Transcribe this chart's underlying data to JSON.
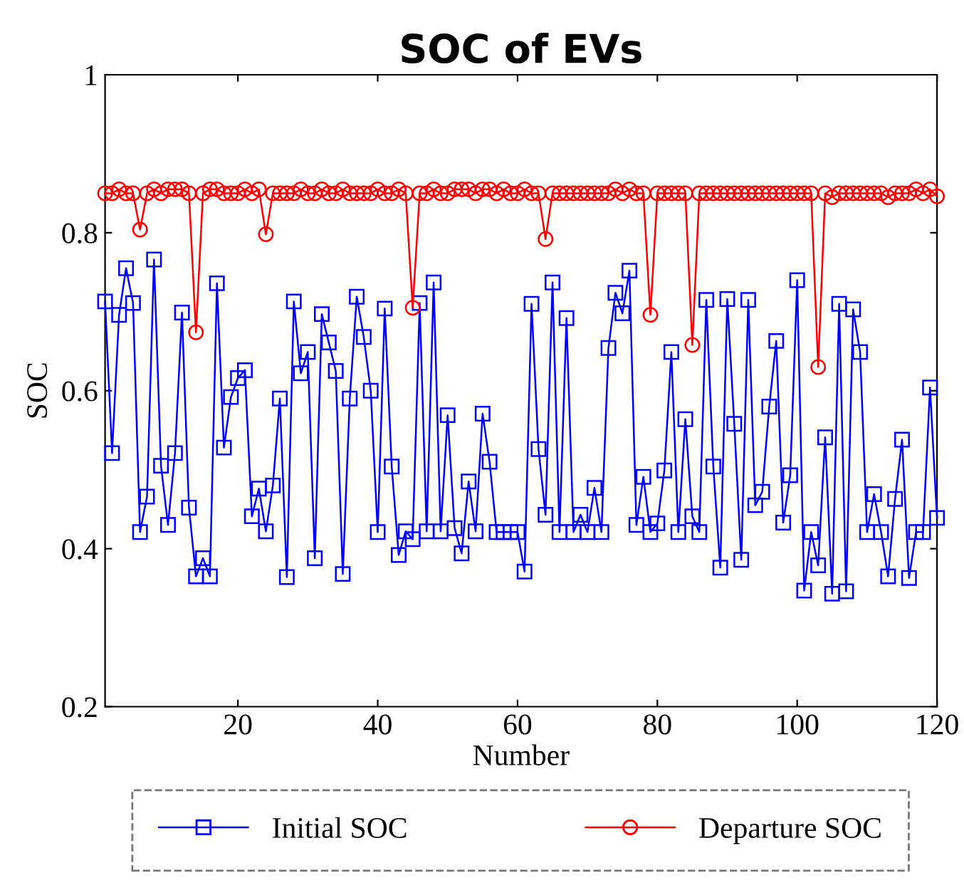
{
  "chart_data": {
    "type": "line",
    "title": "SOC of EVs",
    "xlabel": "Number",
    "ylabel": "SOC",
    "x": [
      1,
      2,
      3,
      4,
      5,
      6,
      7,
      8,
      9,
      10,
      11,
      12,
      13,
      14,
      15,
      16,
      17,
      18,
      19,
      20,
      21,
      22,
      23,
      24,
      25,
      26,
      27,
      28,
      29,
      30,
      31,
      32,
      33,
      34,
      35,
      36,
      37,
      38,
      39,
      40,
      41,
      42,
      43,
      44,
      45,
      46,
      47,
      48,
      49,
      50,
      51,
      52,
      53,
      54,
      55,
      56,
      57,
      58,
      59,
      60,
      61,
      62,
      63,
      64,
      65,
      66,
      67,
      68,
      69,
      70,
      71,
      72,
      73,
      74,
      75,
      76,
      77,
      78,
      79,
      80,
      81,
      82,
      83,
      84,
      85,
      86,
      87,
      88,
      89,
      90,
      91,
      92,
      93,
      94,
      95,
      96,
      97,
      98,
      99,
      100,
      101,
      102,
      103,
      104,
      105,
      106,
      107,
      108,
      109,
      110,
      111,
      112,
      113,
      114,
      115,
      116,
      117,
      118,
      119,
      120
    ],
    "series": [
      {
        "name": "Initial SOC",
        "color": "#0000ff",
        "marker": "square",
        "values": [
          0.713,
          0.521,
          0.696,
          0.755,
          0.711,
          0.421,
          0.466,
          0.766,
          0.505,
          0.43,
          0.521,
          0.699,
          0.452,
          0.365,
          0.388,
          0.365,
          0.736,
          0.528,
          0.592,
          0.616,
          0.626,
          0.441,
          0.476,
          0.422,
          0.48,
          0.59,
          0.364,
          0.713,
          0.622,
          0.649,
          0.388,
          0.697,
          0.661,
          0.625,
          0.368,
          0.59,
          0.719,
          0.668,
          0.6,
          0.421,
          0.704,
          0.504,
          0.392,
          0.422,
          0.412,
          0.711,
          0.422,
          0.737,
          0.422,
          0.569,
          0.426,
          0.394,
          0.485,
          0.422,
          0.571,
          0.51,
          0.421,
          0.421,
          0.421,
          0.421,
          0.371,
          0.71,
          0.526,
          0.443,
          0.737,
          0.421,
          0.692,
          0.421,
          0.443,
          0.421,
          0.477,
          0.421,
          0.654,
          0.724,
          0.698,
          0.752,
          0.43,
          0.491,
          0.421,
          0.432,
          0.499,
          0.649,
          0.421,
          0.564,
          0.441,
          0.421,
          0.715,
          0.504,
          0.376,
          0.716,
          0.558,
          0.386,
          0.715,
          0.455,
          0.472,
          0.58,
          0.663,
          0.433,
          0.493,
          0.74,
          0.347,
          0.421,
          0.379,
          0.541,
          0.343,
          0.71,
          0.346,
          0.703,
          0.649,
          0.421,
          0.469,
          0.421,
          0.365,
          0.463,
          0.538,
          0.363,
          0.421,
          0.421,
          0.604,
          0.439
        ]
      },
      {
        "name": "Departure SOC",
        "color": "#ff0000",
        "marker": "circle",
        "values": [
          0.85,
          0.85,
          0.855,
          0.85,
          0.85,
          0.804,
          0.85,
          0.855,
          0.85,
          0.855,
          0.855,
          0.855,
          0.85,
          0.674,
          0.85,
          0.855,
          0.855,
          0.85,
          0.85,
          0.85,
          0.855,
          0.85,
          0.855,
          0.798,
          0.85,
          0.85,
          0.85,
          0.85,
          0.855,
          0.85,
          0.85,
          0.855,
          0.85,
          0.85,
          0.855,
          0.85,
          0.85,
          0.85,
          0.85,
          0.855,
          0.85,
          0.85,
          0.855,
          0.85,
          0.705,
          0.85,
          0.85,
          0.855,
          0.85,
          0.85,
          0.855,
          0.855,
          0.855,
          0.85,
          0.855,
          0.855,
          0.85,
          0.855,
          0.85,
          0.85,
          0.855,
          0.85,
          0.85,
          0.792,
          0.85,
          0.85,
          0.85,
          0.85,
          0.85,
          0.85,
          0.85,
          0.85,
          0.85,
          0.855,
          0.85,
          0.855,
          0.85,
          0.85,
          0.696,
          0.85,
          0.85,
          0.85,
          0.85,
          0.85,
          0.658,
          0.85,
          0.85,
          0.85,
          0.85,
          0.85,
          0.85,
          0.85,
          0.85,
          0.85,
          0.85,
          0.85,
          0.85,
          0.85,
          0.85,
          0.85,
          0.85,
          0.85,
          0.63,
          0.85,
          0.845,
          0.85,
          0.85,
          0.85,
          0.85,
          0.85,
          0.85,
          0.85,
          0.845,
          0.85,
          0.85,
          0.85,
          0.855,
          0.85,
          0.855,
          0.846
        ]
      }
    ],
    "xlim": [
      1,
      120
    ],
    "xticks": [
      20,
      40,
      60,
      80,
      100,
      120
    ],
    "ylim": [
      0.2,
      1
    ],
    "yticks": [
      0.2,
      0.4,
      0.6,
      0.8,
      1
    ],
    "grid": false,
    "legend": "bottom",
    "line_style": "solid"
  }
}
